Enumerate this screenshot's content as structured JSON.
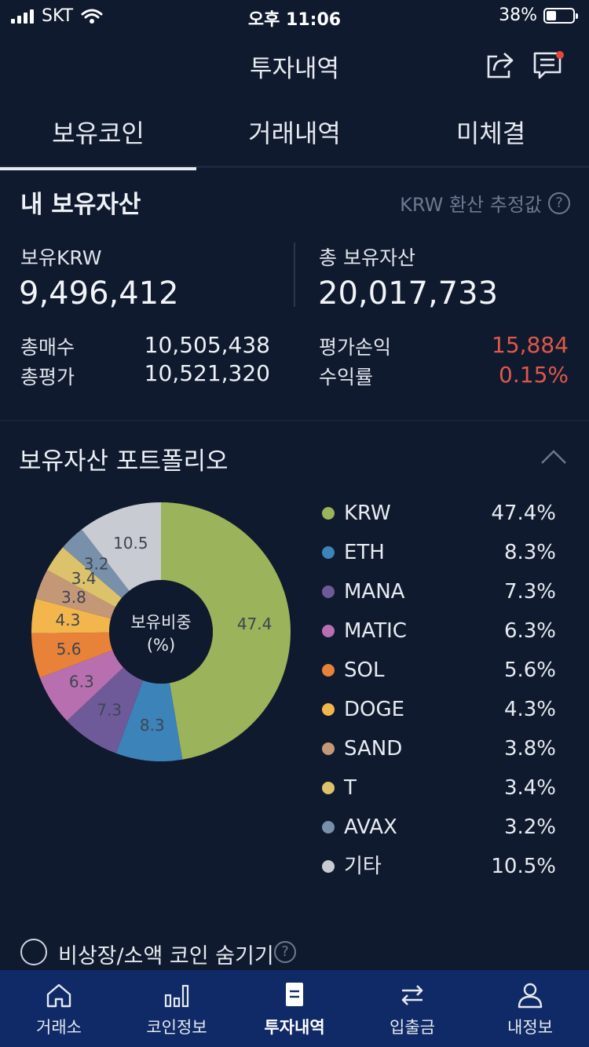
{
  "status": {
    "carrier": "SKT",
    "time": "오후 11:06",
    "battery": "38%",
    "battery_level": 0.38
  },
  "header": {
    "title": "투자내역",
    "share_icon": "share-icon",
    "chat_icon": "chat-icon"
  },
  "tabs": [
    {
      "label": "보유코인",
      "active": true
    },
    {
      "label": "거래내역",
      "active": false
    },
    {
      "label": "미체결",
      "active": false
    }
  ],
  "assets": {
    "title": "내 보유자산",
    "note": "KRW 환산 추정값",
    "krw_label": "보유KRW",
    "krw_value": "9,496,412",
    "total_label": "총 보유자산",
    "total_value": "20,017,733",
    "buy_label": "총매수",
    "buy_value": "10,505,438",
    "eval_label": "총평가",
    "eval_value": "10,521,320",
    "pnl_label": "평가손익",
    "pnl_value": "15,884",
    "rate_label": "수익률",
    "rate_value": "0.15%"
  },
  "portfolio": {
    "title": "보유자산 포트폴리오",
    "center_line1": "보유비중",
    "center_line2": "(%)",
    "colors": {
      "red": "#e0574a",
      "accent": "#e6e9ef"
    }
  },
  "chart_data": {
    "type": "pie",
    "categories": [
      "KRW",
      "ETH",
      "MANA",
      "MATIC",
      "SOL",
      "DOGE",
      "SAND",
      "T",
      "AVAX",
      "기타"
    ],
    "values": [
      47.4,
      8.3,
      7.3,
      6.3,
      5.6,
      4.3,
      3.8,
      3.4,
      3.2,
      10.5
    ],
    "labels": [
      "47.4%",
      "8.3%",
      "7.3%",
      "6.3%",
      "5.6%",
      "4.3%",
      "3.8%",
      "3.4%",
      "3.2%",
      "10.5%"
    ],
    "slice_labels": [
      "47.4",
      "8.3",
      "7.3",
      "6.3",
      "5.6",
      "4.3",
      "3.8",
      "3.4",
      "3.2",
      "10.5"
    ],
    "colors": [
      "#9bb35a",
      "#3c83b9",
      "#6e5a99",
      "#b86fb0",
      "#e88238",
      "#f3b64c",
      "#c49877",
      "#dcc26a",
      "#7890aa",
      "#c8cbd1"
    ],
    "legend_position": "right"
  },
  "hide_small": {
    "label": "비상장/소액 코인 숨기기"
  },
  "bottom_nav": [
    {
      "label": "거래소",
      "icon": "home-icon",
      "active": false
    },
    {
      "label": "코인정보",
      "icon": "bar-chart-icon",
      "active": false
    },
    {
      "label": "투자내역",
      "icon": "document-icon",
      "active": true
    },
    {
      "label": "입출금",
      "icon": "transfer-icon",
      "active": false
    },
    {
      "label": "내정보",
      "icon": "user-icon",
      "active": false
    }
  ]
}
